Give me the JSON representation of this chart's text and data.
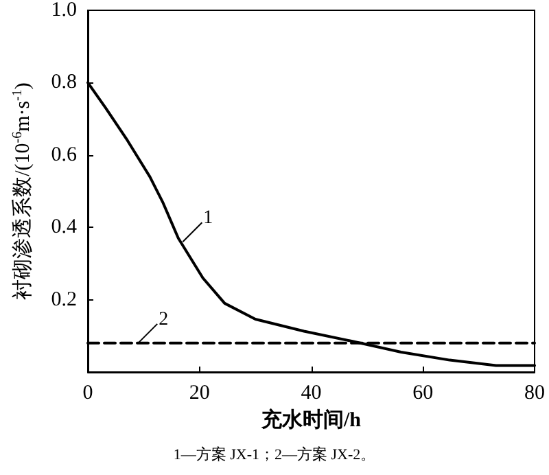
{
  "chart_data": {
    "type": "line",
    "xlabel": "充水时间/h",
    "ylabel": "衬砌渗透系数/(10$^{-6}$m·s$^{-1}$)",
    "xlim": [
      0,
      80
    ],
    "ylim": [
      0,
      1.0
    ],
    "xticks": [
      0,
      20,
      40,
      60,
      80
    ],
    "yticks": [
      {
        "value": 0,
        "label": null
      },
      0.2,
      0.4,
      0.6,
      0.8,
      {
        "value": 1.0,
        "label": "1.0"
      }
    ],
    "grid": false,
    "marker": "none",
    "series": [
      {
        "color": "#000000",
        "line_style": "solid",
        "x": [
          0,
          3.2,
          7.1,
          11.1,
          13.4,
          16.2,
          20.6,
          24.5,
          30,
          38.7,
          47.4,
          56.1,
          64.8,
          73.1,
          80
        ],
        "values": [
          0.8,
          0.73,
          0.64,
          0.54,
          0.47,
          0.37,
          0.26,
          0.19,
          0.146,
          0.113,
          0.085,
          0.055,
          0.033,
          0.018,
          0.018
        ]
      },
      {
        "color": "#000000",
        "line_style": "dashed",
        "x": [
          0,
          80
        ],
        "values": [
          0.08,
          0.08
        ]
      }
    ],
    "annotations": [
      {
        "text": "1",
        "x": 17,
        "y": 0.36
      },
      {
        "text": "2",
        "x": 9,
        "y": 0.08
      },
      "1—方案 JX-1；2—方案 JX-2。"
    ]
  }
}
